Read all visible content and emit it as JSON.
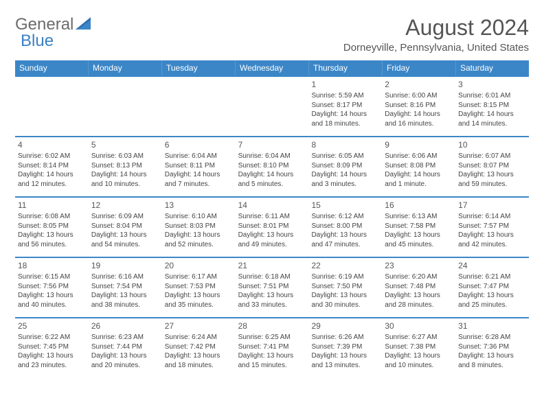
{
  "logo": {
    "text_general": "General",
    "text_blue": "Blue"
  },
  "title": "August 2024",
  "location": "Dorneyville, Pennsylvania, United States",
  "weekdays": [
    "Sunday",
    "Monday",
    "Tuesday",
    "Wednesday",
    "Thursday",
    "Friday",
    "Saturday"
  ],
  "colors": {
    "header_bg": "#3b86c7",
    "header_text": "#ffffff",
    "divider": "#3b86c7",
    "text": "#444444",
    "title_text": "#555555"
  },
  "weeks": [
    [
      null,
      null,
      null,
      null,
      {
        "n": "1",
        "sr": "Sunrise: 5:59 AM",
        "ss": "Sunset: 8:17 PM",
        "d1": "Daylight: 14 hours",
        "d2": "and 18 minutes."
      },
      {
        "n": "2",
        "sr": "Sunrise: 6:00 AM",
        "ss": "Sunset: 8:16 PM",
        "d1": "Daylight: 14 hours",
        "d2": "and 16 minutes."
      },
      {
        "n": "3",
        "sr": "Sunrise: 6:01 AM",
        "ss": "Sunset: 8:15 PM",
        "d1": "Daylight: 14 hours",
        "d2": "and 14 minutes."
      }
    ],
    [
      {
        "n": "4",
        "sr": "Sunrise: 6:02 AM",
        "ss": "Sunset: 8:14 PM",
        "d1": "Daylight: 14 hours",
        "d2": "and 12 minutes."
      },
      {
        "n": "5",
        "sr": "Sunrise: 6:03 AM",
        "ss": "Sunset: 8:13 PM",
        "d1": "Daylight: 14 hours",
        "d2": "and 10 minutes."
      },
      {
        "n": "6",
        "sr": "Sunrise: 6:04 AM",
        "ss": "Sunset: 8:11 PM",
        "d1": "Daylight: 14 hours",
        "d2": "and 7 minutes."
      },
      {
        "n": "7",
        "sr": "Sunrise: 6:04 AM",
        "ss": "Sunset: 8:10 PM",
        "d1": "Daylight: 14 hours",
        "d2": "and 5 minutes."
      },
      {
        "n": "8",
        "sr": "Sunrise: 6:05 AM",
        "ss": "Sunset: 8:09 PM",
        "d1": "Daylight: 14 hours",
        "d2": "and 3 minutes."
      },
      {
        "n": "9",
        "sr": "Sunrise: 6:06 AM",
        "ss": "Sunset: 8:08 PM",
        "d1": "Daylight: 14 hours",
        "d2": "and 1 minute."
      },
      {
        "n": "10",
        "sr": "Sunrise: 6:07 AM",
        "ss": "Sunset: 8:07 PM",
        "d1": "Daylight: 13 hours",
        "d2": "and 59 minutes."
      }
    ],
    [
      {
        "n": "11",
        "sr": "Sunrise: 6:08 AM",
        "ss": "Sunset: 8:05 PM",
        "d1": "Daylight: 13 hours",
        "d2": "and 56 minutes."
      },
      {
        "n": "12",
        "sr": "Sunrise: 6:09 AM",
        "ss": "Sunset: 8:04 PM",
        "d1": "Daylight: 13 hours",
        "d2": "and 54 minutes."
      },
      {
        "n": "13",
        "sr": "Sunrise: 6:10 AM",
        "ss": "Sunset: 8:03 PM",
        "d1": "Daylight: 13 hours",
        "d2": "and 52 minutes."
      },
      {
        "n": "14",
        "sr": "Sunrise: 6:11 AM",
        "ss": "Sunset: 8:01 PM",
        "d1": "Daylight: 13 hours",
        "d2": "and 49 minutes."
      },
      {
        "n": "15",
        "sr": "Sunrise: 6:12 AM",
        "ss": "Sunset: 8:00 PM",
        "d1": "Daylight: 13 hours",
        "d2": "and 47 minutes."
      },
      {
        "n": "16",
        "sr": "Sunrise: 6:13 AM",
        "ss": "Sunset: 7:58 PM",
        "d1": "Daylight: 13 hours",
        "d2": "and 45 minutes."
      },
      {
        "n": "17",
        "sr": "Sunrise: 6:14 AM",
        "ss": "Sunset: 7:57 PM",
        "d1": "Daylight: 13 hours",
        "d2": "and 42 minutes."
      }
    ],
    [
      {
        "n": "18",
        "sr": "Sunrise: 6:15 AM",
        "ss": "Sunset: 7:56 PM",
        "d1": "Daylight: 13 hours",
        "d2": "and 40 minutes."
      },
      {
        "n": "19",
        "sr": "Sunrise: 6:16 AM",
        "ss": "Sunset: 7:54 PM",
        "d1": "Daylight: 13 hours",
        "d2": "and 38 minutes."
      },
      {
        "n": "20",
        "sr": "Sunrise: 6:17 AM",
        "ss": "Sunset: 7:53 PM",
        "d1": "Daylight: 13 hours",
        "d2": "and 35 minutes."
      },
      {
        "n": "21",
        "sr": "Sunrise: 6:18 AM",
        "ss": "Sunset: 7:51 PM",
        "d1": "Daylight: 13 hours",
        "d2": "and 33 minutes."
      },
      {
        "n": "22",
        "sr": "Sunrise: 6:19 AM",
        "ss": "Sunset: 7:50 PM",
        "d1": "Daylight: 13 hours",
        "d2": "and 30 minutes."
      },
      {
        "n": "23",
        "sr": "Sunrise: 6:20 AM",
        "ss": "Sunset: 7:48 PM",
        "d1": "Daylight: 13 hours",
        "d2": "and 28 minutes."
      },
      {
        "n": "24",
        "sr": "Sunrise: 6:21 AM",
        "ss": "Sunset: 7:47 PM",
        "d1": "Daylight: 13 hours",
        "d2": "and 25 minutes."
      }
    ],
    [
      {
        "n": "25",
        "sr": "Sunrise: 6:22 AM",
        "ss": "Sunset: 7:45 PM",
        "d1": "Daylight: 13 hours",
        "d2": "and 23 minutes."
      },
      {
        "n": "26",
        "sr": "Sunrise: 6:23 AM",
        "ss": "Sunset: 7:44 PM",
        "d1": "Daylight: 13 hours",
        "d2": "and 20 minutes."
      },
      {
        "n": "27",
        "sr": "Sunrise: 6:24 AM",
        "ss": "Sunset: 7:42 PM",
        "d1": "Daylight: 13 hours",
        "d2": "and 18 minutes."
      },
      {
        "n": "28",
        "sr": "Sunrise: 6:25 AM",
        "ss": "Sunset: 7:41 PM",
        "d1": "Daylight: 13 hours",
        "d2": "and 15 minutes."
      },
      {
        "n": "29",
        "sr": "Sunrise: 6:26 AM",
        "ss": "Sunset: 7:39 PM",
        "d1": "Daylight: 13 hours",
        "d2": "and 13 minutes."
      },
      {
        "n": "30",
        "sr": "Sunrise: 6:27 AM",
        "ss": "Sunset: 7:38 PM",
        "d1": "Daylight: 13 hours",
        "d2": "and 10 minutes."
      },
      {
        "n": "31",
        "sr": "Sunrise: 6:28 AM",
        "ss": "Sunset: 7:36 PM",
        "d1": "Daylight: 13 hours",
        "d2": "and 8 minutes."
      }
    ]
  ]
}
